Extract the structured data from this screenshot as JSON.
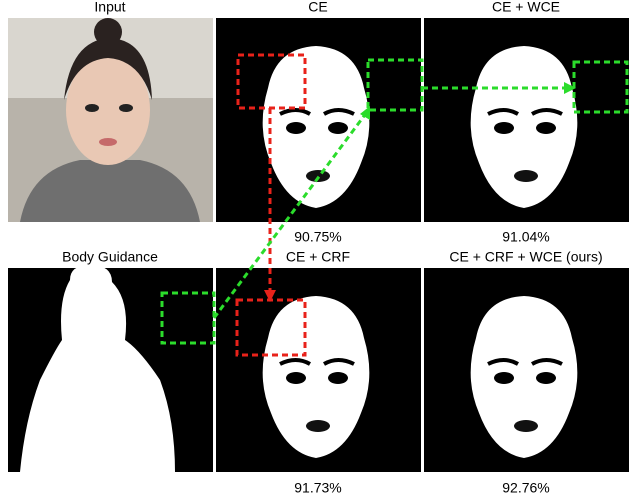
{
  "panels": [
    {
      "title": "Input"
    },
    {
      "title": "CE",
      "score": "90.75%"
    },
    {
      "title": "CE + WCE",
      "score": "91.04%"
    },
    {
      "title": "Body Guidance"
    },
    {
      "title": "CE + CRF",
      "score": "91.73%"
    },
    {
      "title": "CE + CRF + WCE (ours)",
      "score": "92.76%"
    }
  ]
}
